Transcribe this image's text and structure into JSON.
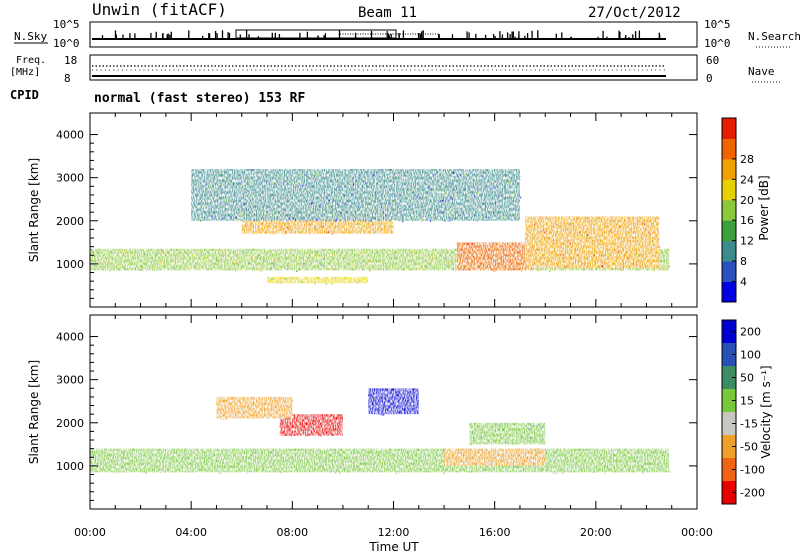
{
  "header": {
    "station": "Unwin (fitACF)",
    "beam": "Beam 11",
    "date": "27/Oct/2012"
  },
  "top_panels": {
    "nsky": {
      "label": "N.Sky",
      "ticks": [
        "10^5",
        "10^0"
      ]
    },
    "nsearch": {
      "label": "N.Search",
      "ticks": [
        "10^5",
        "10^0"
      ]
    },
    "freq": {
      "label_line1": "Freq.",
      "label_line2": "[MHz]",
      "ticks": [
        "18",
        "8"
      ]
    },
    "nave": {
      "label": "Nave",
      "ticks": [
        "60",
        "0"
      ]
    },
    "cpid": {
      "label": "CPID",
      "value": "normal (fast stereo) 153 RF"
    }
  },
  "chart_data": [
    {
      "type": "heatmap",
      "name": "power",
      "xlabel": "Time UT",
      "ylabel": "Slant Range [km]",
      "xlim": [
        0,
        24
      ],
      "ylim": [
        0,
        4500
      ],
      "x_ticks": [
        "00:00",
        "04:00",
        "08:00",
        "12:00",
        "16:00",
        "20:00",
        "00:00"
      ],
      "y_ticks": [
        "1000",
        "2000",
        "3000",
        "4000"
      ],
      "colorbar": {
        "label": "Power [dB]",
        "ticks": [
          "4",
          "8",
          "12",
          "16",
          "20",
          "24",
          "28"
        ],
        "range": [
          0,
          30
        ],
        "colors": [
          "#0000e0",
          "#2a4fbf",
          "#3c8c8c",
          "#3ca03c",
          "#8cc83c",
          "#e6d200",
          "#f0a000",
          "#f06400",
          "#e61e00"
        ]
      },
      "echo_regions": [
        {
          "t": [
            0.0,
            22.9
          ],
          "r": [
            850,
            1350
          ],
          "v": 16
        },
        {
          "t": [
            6.0,
            12.0
          ],
          "r": [
            1700,
            2300
          ],
          "v": 22
        },
        {
          "t": [
            14.5,
            17.5
          ],
          "r": [
            850,
            1500
          ],
          "v": 26
        },
        {
          "t": [
            17.2,
            22.5
          ],
          "r": [
            900,
            2100
          ],
          "v": 22
        },
        {
          "t": [
            7.0,
            11.0
          ],
          "r": [
            550,
            700
          ],
          "v": 18
        },
        {
          "t": [
            4.0,
            17.0
          ],
          "r": [
            2000,
            3200
          ],
          "v": 9
        }
      ]
    },
    {
      "type": "heatmap",
      "name": "velocity",
      "xlabel": "Time UT",
      "ylabel": "Slant Range [km]",
      "xlim": [
        0,
        24
      ],
      "ylim": [
        0,
        4500
      ],
      "x_ticks": [
        "00:00",
        "04:00",
        "08:00",
        "12:00",
        "16:00",
        "20:00",
        "00:00"
      ],
      "y_ticks": [
        "1000",
        "2000",
        "3000",
        "4000"
      ],
      "colorbar": {
        "label": "Velocity [m s⁻¹]",
        "ticks": [
          "200",
          "100",
          "50",
          "15",
          "-15",
          "-50",
          "-100",
          "-200"
        ],
        "colors": [
          "#0000d0",
          "#2850b4",
          "#3c8c64",
          "#78c83c",
          "#c8c8c0",
          "#f0a028",
          "#f06414",
          "#e60000"
        ]
      },
      "echo_regions": [
        {
          "t": [
            0.0,
            22.9
          ],
          "r": [
            850,
            1400
          ],
          "v": 0
        },
        {
          "t": [
            7.5,
            10.0
          ],
          "r": [
            1700,
            2200
          ],
          "v": -180
        },
        {
          "t": [
            11.0,
            13.0
          ],
          "r": [
            2200,
            2800
          ],
          "v": 180
        },
        {
          "t": [
            14.0,
            18.0
          ],
          "r": [
            1000,
            1400
          ],
          "v": -40
        },
        {
          "t": [
            15.0,
            18.0
          ],
          "r": [
            1500,
            2000
          ],
          "v": 30
        },
        {
          "t": [
            5.0,
            8.0
          ],
          "r": [
            2100,
            2600
          ],
          "v": -40
        }
      ]
    }
  ]
}
